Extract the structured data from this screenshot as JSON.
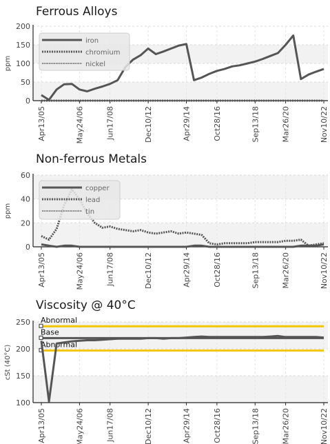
{
  "chart_data": [
    {
      "type": "line",
      "title": "Ferrous Alloys",
      "ylabel": "ppm",
      "ylim": [
        0,
        200
      ],
      "yticks": [
        0,
        50,
        100,
        150,
        200
      ],
      "x_tick_labels": [
        "Apr13/05",
        "May24/06",
        "Jun17/08",
        "Dec10/12",
        "Apr29/14",
        "Oct28/16",
        "Sep13/18",
        "Mar26/20",
        "Nov10/22"
      ],
      "grid": true,
      "legend": "top-left",
      "n_points": 38,
      "series": [
        {
          "name": "iron",
          "style": "solid",
          "color": "#555555",
          "values": [
            15,
            2,
            30,
            44,
            45,
            30,
            25,
            32,
            38,
            45,
            55,
            90,
            110,
            122,
            140,
            125,
            132,
            140,
            148,
            152,
            55,
            62,
            72,
            80,
            85,
            92,
            95,
            100,
            105,
            112,
            120,
            128,
            150,
            175,
            58,
            70,
            78,
            85
          ]
        },
        {
          "name": "chromium",
          "style": "dotted",
          "color": "#555555",
          "values": [
            0,
            0,
            0,
            0,
            0,
            0,
            0,
            0,
            0,
            0,
            0,
            0,
            0,
            0,
            0,
            0,
            0,
            0,
            0,
            0,
            0,
            0,
            0,
            0,
            0,
            0,
            0,
            0,
            0,
            0,
            0,
            0,
            0,
            0,
            0,
            0,
            0,
            0
          ]
        },
        {
          "name": "nickel",
          "style": "dashed",
          "color": "#555555",
          "values": [
            0,
            0,
            0,
            0,
            0,
            0,
            0,
            0,
            0,
            0,
            0,
            0,
            0,
            0,
            0,
            0,
            0,
            0,
            0,
            0,
            0,
            0,
            0,
            0,
            0,
            0,
            0,
            0,
            0,
            0,
            0,
            0,
            0,
            0,
            0,
            0,
            0,
            0
          ]
        }
      ]
    },
    {
      "type": "line",
      "title": "Non-ferrous Metals",
      "ylabel": "ppm",
      "ylim": [
        0,
        60
      ],
      "yticks": [
        0,
        20,
        40,
        60
      ],
      "x_tick_labels": [
        "Apr13/05",
        "May24/06",
        "Jun17/08",
        "Dec10/12",
        "Apr29/14",
        "Oct28/16",
        "Sep13/18",
        "Mar26/20",
        "Nov10/22"
      ],
      "grid": true,
      "legend": "top-left",
      "n_points": 38,
      "series": [
        {
          "name": "copper",
          "style": "solid",
          "color": "#555555",
          "values": [
            2,
            1,
            0,
            1,
            1,
            0,
            0,
            0,
            0,
            0,
            0,
            0,
            0,
            0,
            0,
            0,
            0,
            0,
            0,
            0,
            1,
            1,
            0,
            0,
            0,
            0,
            0,
            0,
            0,
            0,
            0,
            0,
            0,
            0,
            1,
            1,
            1,
            2
          ]
        },
        {
          "name": "lead",
          "style": "dotted",
          "color": "#555555",
          "values": [
            9,
            6,
            15,
            35,
            48,
            40,
            28,
            20,
            16,
            17,
            15,
            14,
            13,
            14,
            12,
            11,
            12,
            13,
            11,
            12,
            11,
            10,
            3,
            2,
            3,
            3,
            3,
            3,
            4,
            4,
            4,
            4,
            5,
            5,
            6,
            1,
            2,
            3
          ]
        },
        {
          "name": "tin",
          "style": "dashed",
          "color": "#555555",
          "values": [
            0,
            0,
            0,
            0,
            0,
            0,
            0,
            0,
            0,
            0,
            0,
            0,
            0,
            0,
            0,
            0,
            0,
            0,
            0,
            0,
            0,
            0,
            0,
            0,
            0,
            0,
            0,
            0,
            0,
            0,
            0,
            0,
            0,
            0,
            0,
            0,
            0,
            0
          ]
        }
      ]
    },
    {
      "type": "line",
      "title": "Viscosity @ 40°C",
      "ylabel": "cSt (40°C)",
      "ylim": [
        100,
        250
      ],
      "yticks": [
        100,
        150,
        200,
        250
      ],
      "x_tick_labels": [
        "Apr13/05",
        "May24/06",
        "Jun17/08",
        "Dec10/12",
        "Apr29/14",
        "Oct28/16",
        "Sep13/18",
        "Mar26/20",
        "Nov10/22"
      ],
      "grid": true,
      "n_points": 38,
      "reference_lines": [
        {
          "label": "Abnormal",
          "value": 242,
          "color": "#f2c500"
        },
        {
          "label": "Base",
          "value": 220,
          "color": "#555555"
        },
        {
          "label": "Abnormal",
          "value": 197,
          "color": "#f2c500"
        }
      ],
      "series": [
        {
          "name": "viscosity",
          "style": "solid",
          "color": "#555555",
          "values": [
            215,
            102,
            210,
            212,
            214,
            215,
            216,
            216,
            217,
            218,
            219,
            219,
            219,
            219,
            220,
            220,
            219,
            220,
            220,
            221,
            222,
            223,
            222,
            222,
            222,
            222,
            222,
            222,
            222,
            222,
            223,
            224,
            222,
            222,
            222,
            222,
            222,
            221
          ]
        }
      ]
    }
  ]
}
